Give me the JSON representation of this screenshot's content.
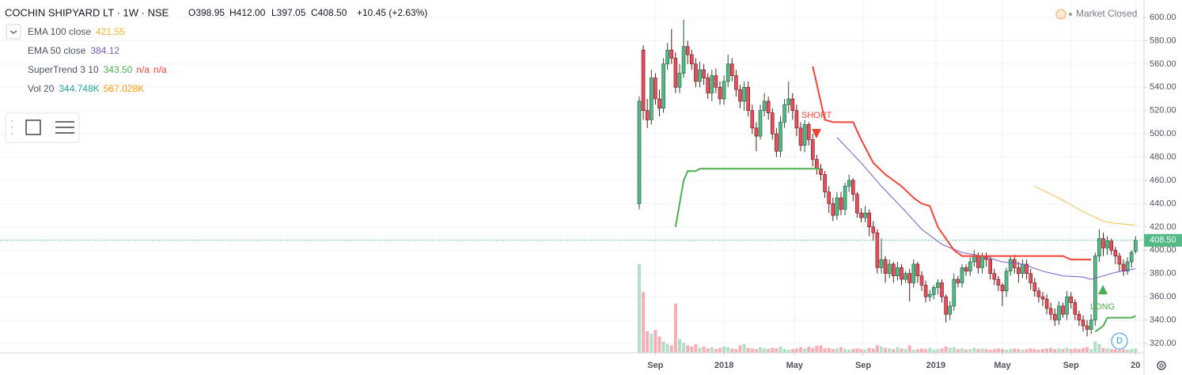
{
  "chart_data": {
    "type": "candlestick",
    "title": "COCHIN SHIPYARD LT · 1W · NSE",
    "ohlc_header": [
      "O398.95",
      "H412.00",
      "L397.05",
      "C408.50",
      "+10.45 (+2.63%)"
    ],
    "status": "Market Closed",
    "indicators": [
      {
        "name": "EMA 100 close",
        "labels": [
          "421.55"
        ],
        "label_colors": [
          "#f0b429"
        ],
        "color": "#f5c04a",
        "x": [
          98,
          105,
          110,
          115,
          118,
          123
        ],
        "y": [
          455,
          443,
          433,
          425,
          423,
          421.55
        ]
      },
      {
        "name": "EMA 50 close",
        "labels": [
          "384.12"
        ],
        "label_colors": [
          "#7e57c2"
        ],
        "color": "#7e57c2",
        "x": [
          49,
          55,
          60,
          65,
          70,
          75,
          80,
          85,
          90,
          95,
          100,
          105,
          110,
          112,
          115,
          118,
          123
        ],
        "y": [
          497,
          475,
          455,
          437,
          418,
          405,
          398,
          395,
          390,
          388,
          382,
          378,
          377,
          375,
          378,
          381,
          384.12
        ]
      },
      {
        "name": "SuperTrend 3 10",
        "labels": [
          "343.50",
          "n/a",
          "n/a"
        ],
        "label_colors": [
          "#4caf50",
          "#f44336",
          "#f44336"
        ],
        "segments": [
          {
            "color": "#4caf50",
            "x": [
              9,
              11,
              12,
              14,
              15,
              45
            ],
            "y": [
              420,
              460,
              468,
              468,
              470,
              470
            ]
          },
          {
            "color": "#f44336",
            "x": [
              43,
              46,
              48,
              53,
              55,
              58,
              61,
              63,
              65,
              68,
              70,
              72,
              74,
              76,
              78,
              80,
              95,
              105,
              107,
              112
            ],
            "y": [
              558,
              512,
              510,
              510,
              495,
              475,
              465,
              460,
              455,
              445,
              440,
              438,
              420,
              410,
              400,
              395,
              395,
              395,
              392,
              392
            ]
          },
          {
            "color": "#4caf50",
            "x": [
              113,
              115,
              116,
              122,
              123
            ],
            "y": [
              330,
              335,
              342,
              342,
              343.5
            ]
          }
        ]
      },
      {
        "name": "Vol 20",
        "labels": [
          "344.748K",
          "567.028K"
        ],
        "label_colors": [
          "#26a69a",
          "#ff9800"
        ]
      }
    ],
    "annotations": [
      "SHORT",
      "LONG"
    ],
    "events": [
      "D"
    ],
    "up_color": "#53b987",
    "down_color": "#eb4d5c",
    "open": [
      440,
      572,
      520,
      512,
      548,
      530,
      522,
      560,
      572,
      565,
      540,
      552,
      575,
      568,
      560,
      545,
      555,
      548,
      535,
      550,
      540,
      530,
      545,
      560,
      550,
      538,
      528,
      540,
      520,
      505,
      498,
      520,
      528,
      518,
      500,
      485,
      510,
      525,
      530,
      520,
      505,
      490,
      508,
      495,
      478,
      470,
      465,
      450,
      440,
      430,
      445,
      435,
      455,
      460,
      448,
      432,
      428,
      432,
      420,
      415,
      385,
      392,
      380,
      388,
      378,
      385,
      375,
      380,
      372,
      388,
      378,
      370,
      360,
      362,
      368,
      372,
      360,
      345,
      352,
      375,
      372,
      385,
      382,
      390,
      395,
      385,
      395,
      392,
      380,
      375,
      370,
      365,
      382,
      392,
      385,
      380,
      388,
      380,
      372,
      365,
      360,
      358,
      350,
      345,
      340,
      352,
      345,
      360,
      355,
      345,
      340,
      335,
      332,
      340,
      395,
      410,
      402,
      408,
      400,
      395,
      388,
      382,
      390,
      398.95
    ],
    "high": [
      532,
      576,
      530,
      555,
      552,
      538,
      565,
      578,
      590,
      570,
      560,
      598,
      580,
      572,
      565,
      562,
      560,
      552,
      555,
      556,
      545,
      550,
      568,
      565,
      555,
      542,
      545,
      545,
      525,
      510,
      525,
      535,
      532,
      522,
      505,
      515,
      530,
      545,
      535,
      525,
      510,
      512,
      510,
      500,
      482,
      474,
      468,
      455,
      445,
      450,
      450,
      458,
      465,
      462,
      450,
      436,
      438,
      435,
      425,
      418,
      410,
      395,
      392,
      390,
      390,
      388,
      382,
      384,
      392,
      390,
      382,
      374,
      366,
      370,
      375,
      375,
      362,
      356,
      380,
      378,
      388,
      388,
      394,
      400,
      398,
      398,
      398,
      395,
      384,
      378,
      372,
      385,
      395,
      396,
      390,
      392,
      392,
      384,
      376,
      368,
      364,
      362,
      355,
      350,
      356,
      355,
      365,
      364,
      358,
      348,
      344,
      340,
      345,
      398,
      418,
      415,
      412,
      410,
      403,
      398,
      392,
      394,
      400,
      412
    ],
    "low": [
      435,
      512,
      505,
      508,
      525,
      515,
      518,
      555,
      560,
      535,
      535,
      548,
      560,
      555,
      540,
      540,
      542,
      530,
      528,
      535,
      525,
      525,
      540,
      545,
      532,
      522,
      520,
      515,
      500,
      485,
      495,
      515,
      512,
      495,
      480,
      480,
      505,
      518,
      512,
      498,
      485,
      484,
      490,
      472,
      465,
      460,
      445,
      432,
      425,
      426,
      430,
      430,
      450,
      442,
      428,
      424,
      424,
      412,
      408,
      380,
      380,
      372,
      376,
      372,
      374,
      370,
      372,
      356,
      368,
      372,
      365,
      355,
      356,
      358,
      362,
      355,
      338,
      340,
      348,
      368,
      368,
      378,
      378,
      386,
      380,
      380,
      386,
      375,
      370,
      365,
      352,
      360,
      378,
      380,
      372,
      376,
      375,
      366,
      360,
      355,
      352,
      345,
      340,
      335,
      336,
      342,
      340,
      350,
      340,
      335,
      330,
      326,
      328,
      335,
      390,
      395,
      396,
      396,
      388,
      382,
      378,
      379,
      385,
      397.05
    ],
    "close": [
      528,
      520,
      512,
      548,
      530,
      522,
      560,
      572,
      565,
      540,
      552,
      575,
      568,
      560,
      545,
      555,
      548,
      535,
      550,
      540,
      530,
      545,
      560,
      550,
      538,
      528,
      540,
      520,
      505,
      498,
      520,
      528,
      518,
      500,
      485,
      510,
      525,
      530,
      520,
      505,
      490,
      508,
      495,
      478,
      470,
      465,
      450,
      440,
      430,
      445,
      435,
      455,
      460,
      448,
      432,
      428,
      432,
      420,
      415,
      385,
      392,
      380,
      388,
      378,
      385,
      375,
      380,
      372,
      388,
      378,
      370,
      360,
      362,
      368,
      372,
      360,
      345,
      352,
      375,
      372,
      385,
      382,
      390,
      395,
      385,
      395,
      392,
      380,
      375,
      370,
      365,
      382,
      392,
      385,
      380,
      388,
      380,
      372,
      365,
      360,
      358,
      350,
      345,
      340,
      352,
      345,
      360,
      355,
      345,
      340,
      335,
      332,
      340,
      395,
      410,
      402,
      408,
      400,
      395,
      388,
      382,
      390,
      398.05,
      408.5
    ],
    "volume": [
      7000000,
      4800000,
      1700000,
      1500000,
      1800000,
      1300000,
      900000,
      700000,
      600000,
      3900000,
      1100000,
      800000,
      600000,
      500000,
      700000,
      400000,
      500000,
      350000,
      450000,
      300000,
      400000,
      500000,
      450000,
      350000,
      300000,
      600000,
      700000,
      400000,
      350000,
      300000,
      450000,
      350000,
      300000,
      400000,
      350000,
      500000,
      300000,
      250000,
      300000,
      350000,
      450000,
      350000,
      500000,
      400000,
      550000,
      600000,
      350000,
      400000,
      300000,
      350000,
      450000,
      300000,
      250000,
      300000,
      350000,
      300000,
      250000,
      400000,
      350000,
      600000,
      500000,
      400000,
      350000,
      300000,
      450000,
      350000,
      300000,
      600000,
      250000,
      300000,
      350000,
      300000,
      400000,
      250000,
      300000,
      350000,
      500000,
      400000,
      450000,
      300000,
      350000,
      250000,
      300000,
      400000,
      300000,
      350000,
      300000,
      250000,
      300000,
      350000,
      300000,
      250000,
      300000,
      350000,
      300000,
      250000,
      300000,
      350000,
      300000,
      250000,
      300000,
      350000,
      400000,
      300000,
      350000,
      300000,
      400000,
      300000,
      350000,
      300000,
      400000,
      450000,
      300000,
      900000,
      700000,
      400000,
      350000,
      300000,
      300000,
      250000,
      300000,
      250000,
      300000,
      344748
    ],
    "volume_lim": [
      0,
      7000000
    ],
    "last_price": {
      "value": 408.5,
      "label": "408.50"
    },
    "xlim": [
      -158.43,
      125.1
    ],
    "ylim": [
      311.84,
      614.95
    ],
    "xticks": [
      {
        "value": 4,
        "label": "Sep"
      },
      {
        "value": 21,
        "label": "2018"
      },
      {
        "value": 38.5,
        "label": "May"
      },
      {
        "value": 55.5,
        "label": "Sep"
      },
      {
        "value": 73.5,
        "label": "2019"
      },
      {
        "value": 90,
        "label": "May"
      },
      {
        "value": 107,
        "label": "Sep"
      },
      {
        "value": 123,
        "label": "20"
      }
    ],
    "yticks": [
      {
        "value": 320,
        "label": "320.00"
      },
      {
        "value": 340,
        "label": "340.00"
      },
      {
        "value": 360,
        "label": "360.00"
      },
      {
        "value": 380,
        "label": "380.00"
      },
      {
        "value": 400,
        "label": "400.00"
      },
      {
        "value": 420,
        "label": "420.00"
      },
      {
        "value": 440,
        "label": "440.00"
      },
      {
        "value": 460,
        "label": "460.00"
      },
      {
        "value": 480,
        "label": "480.00"
      },
      {
        "value": 500,
        "label": "500.00"
      },
      {
        "value": 520,
        "label": "520.00"
      },
      {
        "value": 540,
        "label": "540.00"
      },
      {
        "value": 560,
        "label": "560.00"
      },
      {
        "value": 580,
        "label": "580.00"
      },
      {
        "value": 600,
        "label": "600.00"
      }
    ],
    "grid": true
  }
}
